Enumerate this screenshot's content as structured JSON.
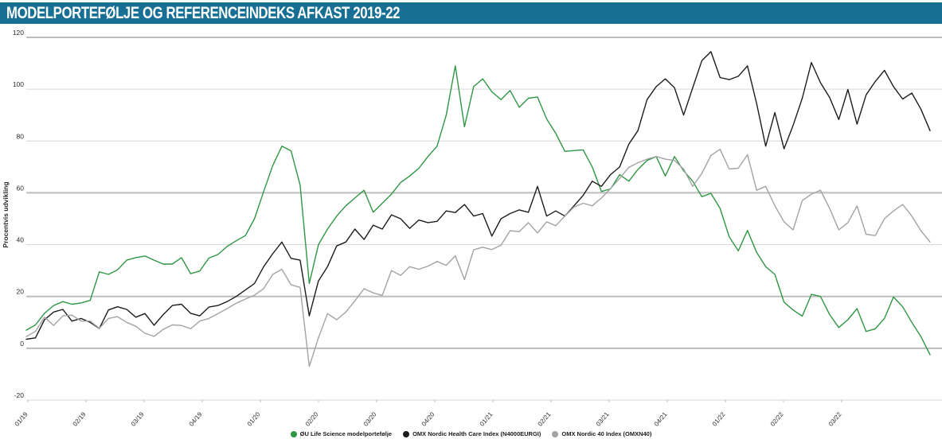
{
  "title": "MODELPORTEFØLJE OG REFERENCEINDEKS AFKAST 2019-22",
  "colors": {
    "title_bar_bg": "#186f94",
    "title_text": "#ffffff",
    "grid_minor": "#d6d6d6",
    "grid_major": "#bdbdbd",
    "axis_text": "#2a2a2a",
    "series_green": "#2f9644",
    "series_black": "#1c1c1c",
    "series_gray": "#a3a3a3"
  },
  "chart_data": {
    "type": "line",
    "title": "MODELPORTEFØLJE OG REFERENCEINDEKS AFKAST 2019-22",
    "xlabel": "",
    "ylabel": "Procentvis udvikling",
    "ylim": [
      -20,
      120
    ],
    "yticks": [
      120,
      100,
      80,
      60,
      40,
      20,
      0,
      -20
    ],
    "major_gridlines": [
      120,
      60,
      20,
      0
    ],
    "grid": true,
    "legend_position": "bottom",
    "xticklabels": [
      "01/19",
      "02/19",
      "03/19",
      "04/19",
      "01/20",
      "02/20",
      "03/20",
      "04/20",
      "01/21",
      "02/21",
      "03/21",
      "04/21",
      "01/22",
      "02/22",
      "03/22"
    ],
    "x_unit": "weekly samples, Jan 2019 - Nov 2022",
    "series": [
      {
        "name": "ØU Life Science modelportefølje",
        "color": "#2f9644",
        "values": [
          7,
          9,
          13.5,
          16.5,
          18,
          17,
          17.5,
          18.5,
          29.5,
          28.5,
          30.3,
          34,
          35,
          35.6,
          34,
          32.5,
          32.5,
          35,
          28.8,
          29.8,
          34.8,
          36.2,
          39.3,
          41.5,
          43.5,
          50,
          60.5,
          70.5,
          78,
          76.2,
          63,
          25,
          40,
          46,
          51,
          55,
          58,
          61,
          52.5,
          56,
          59.5,
          64,
          66.5,
          69.5,
          74,
          78,
          90,
          109,
          85.5,
          101,
          104,
          99,
          96,
          99.5,
          93,
          96.5,
          97,
          88.5,
          83,
          76,
          76.3,
          76.6,
          70,
          60.5,
          61.5,
          67,
          64.5,
          69,
          72.5,
          74,
          66.5,
          74,
          68.5,
          64.5,
          58.5,
          59.8,
          54,
          43,
          37.6,
          45.5,
          37,
          31.5,
          28.5,
          17.8,
          14.8,
          12.4,
          20.8,
          20,
          13,
          8,
          11,
          15.3,
          6.5,
          7.5,
          11.5,
          19.8,
          16,
          10,
          4.5,
          -2.5
        ]
      },
      {
        "name": "OMX Nordic Health Care Index (N4000EURGI)",
        "color": "#1c1c1c",
        "values": [
          3.5,
          4,
          11,
          14,
          15,
          10.5,
          11.5,
          10,
          7.6,
          14.8,
          16,
          15,
          12,
          13.4,
          8.9,
          13,
          16.5,
          17,
          13.5,
          12.5,
          15.9,
          16.5,
          18,
          20,
          22.5,
          25,
          31.5,
          36.5,
          41,
          34.7,
          34,
          12.5,
          26,
          31.5,
          39.5,
          41,
          46,
          42,
          47.5,
          46,
          51.5,
          50,
          46.3,
          49.5,
          48.5,
          49,
          53,
          52.4,
          55.5,
          51,
          52,
          43.3,
          50,
          52,
          53.4,
          52.5,
          62.5,
          51,
          53,
          51,
          55,
          59,
          64.5,
          62.5,
          67,
          70,
          78.8,
          84,
          96,
          101,
          104,
          100.6,
          90,
          100.5,
          111,
          114.5,
          104.5,
          103.7,
          105,
          109,
          94.5,
          78,
          91,
          77,
          86,
          96.5,
          110.3,
          102.5,
          96.8,
          88.3,
          99.9,
          86.5,
          97.8,
          103,
          107.3,
          101,
          96.2,
          98.5,
          92.3,
          84
        ]
      },
      {
        "name": "OMX Nordic 40 Index (OMXN40)",
        "color": "#a3a3a3",
        "values": [
          4.5,
          6.5,
          12,
          8.8,
          12.5,
          12.8,
          10.5,
          10.5,
          7.7,
          11.5,
          12.2,
          10,
          8.5,
          5.8,
          4.6,
          7.3,
          9,
          8.8,
          7.5,
          10.5,
          11.5,
          13.4,
          15.3,
          17.4,
          19,
          20.5,
          23,
          28.5,
          30.5,
          24.5,
          23.5,
          -7,
          4,
          13.4,
          11,
          14,
          18.3,
          23,
          21.4,
          20.4,
          30,
          28.1,
          31.5,
          30.5,
          31.7,
          33.5,
          32,
          35.7,
          26.5,
          38,
          39,
          38.1,
          39.8,
          45.4,
          45,
          48.5,
          44.5,
          48.8,
          47.3,
          51,
          54.5,
          56,
          55,
          58,
          61.6,
          65.6,
          69.8,
          71.6,
          73,
          74,
          73,
          72.5,
          69.2,
          62.5,
          67.5,
          74.4,
          76.8,
          69.2,
          69.5,
          74.7,
          61,
          62.5,
          55,
          48.8,
          45.7,
          57,
          59.5,
          61,
          54,
          45.7,
          48.5,
          54.9,
          44,
          43.5,
          50,
          53,
          55.5,
          51,
          45.4,
          41
        ]
      }
    ]
  }
}
